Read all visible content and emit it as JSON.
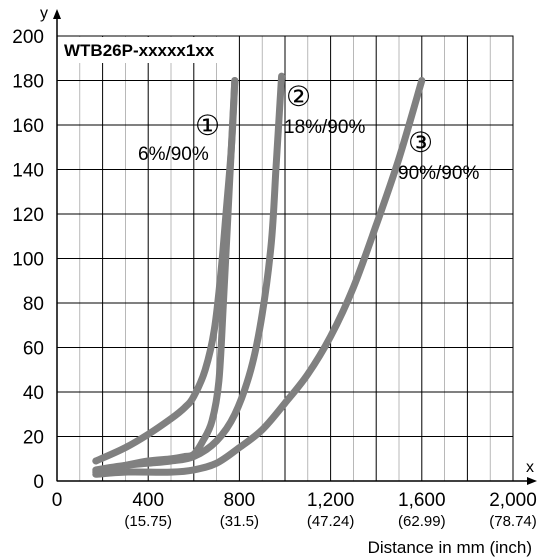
{
  "chart_data": {
    "type": "line",
    "title": "WTB26P-xxxxx1xx",
    "ylabel": "y",
    "xlabel": "x",
    "x_caption": "Distance in mm (inch)",
    "xlim": [
      0,
      2000
    ],
    "ylim": [
      0,
      200
    ],
    "grid": true,
    "x_ticks": [
      {
        "value": 0,
        "label": "0",
        "sub": ""
      },
      {
        "value": 400,
        "label": "400",
        "sub": "(15.75)"
      },
      {
        "value": 800,
        "label": "800",
        "sub": "(31.5)"
      },
      {
        "value": 1200,
        "label": "1,200",
        "sub": "(47.24)"
      },
      {
        "value": 1600,
        "label": "1,600",
        "sub": "(62.99)"
      },
      {
        "value": 2000,
        "label": "2,000",
        "sub": "(78.74)"
      }
    ],
    "y_ticks": [
      "0",
      "20",
      "40",
      "60",
      "80",
      "100",
      "120",
      "140",
      "160",
      "180",
      "200"
    ],
    "series_color": "#808080",
    "series": [
      {
        "name": "6%/90%",
        "marker": "①",
        "points": [
          [
            170,
            9
          ],
          [
            300,
            15
          ],
          [
            400,
            21
          ],
          [
            500,
            28
          ],
          [
            560,
            33
          ],
          [
            600,
            38
          ],
          [
            650,
            50
          ],
          [
            690,
            68
          ],
          [
            720,
            95
          ],
          [
            745,
            125
          ],
          [
            765,
            150
          ],
          [
            780,
            180
          ]
        ],
        "lower_points": [
          [
            170,
            4
          ],
          [
            300,
            7
          ],
          [
            400,
            9
          ],
          [
            500,
            10
          ],
          [
            560,
            11
          ],
          [
            600,
            12
          ],
          [
            640,
            18
          ],
          [
            680,
            27
          ],
          [
            710,
            45
          ],
          [
            730,
            80
          ],
          [
            755,
            130
          ],
          [
            780,
            180
          ]
        ]
      },
      {
        "name": "18%/90%",
        "marker": "②",
        "points": [
          [
            170,
            5
          ],
          [
            300,
            7
          ],
          [
            400,
            8
          ],
          [
            500,
            9
          ],
          [
            600,
            11
          ],
          [
            700,
            18
          ],
          [
            780,
            30
          ],
          [
            850,
            50
          ],
          [
            900,
            75
          ],
          [
            940,
            107
          ],
          [
            960,
            140
          ],
          [
            975,
            165
          ],
          [
            985,
            182
          ]
        ]
      },
      {
        "name": "90%/90%",
        "marker": "③",
        "points": [
          [
            170,
            3
          ],
          [
            300,
            4
          ],
          [
            500,
            4
          ],
          [
            600,
            5
          ],
          [
            700,
            8
          ],
          [
            800,
            15
          ],
          [
            900,
            23
          ],
          [
            1000,
            35
          ],
          [
            1100,
            48
          ],
          [
            1200,
            65
          ],
          [
            1300,
            87
          ],
          [
            1400,
            115
          ],
          [
            1500,
            145
          ],
          [
            1600,
            180
          ]
        ]
      }
    ]
  }
}
